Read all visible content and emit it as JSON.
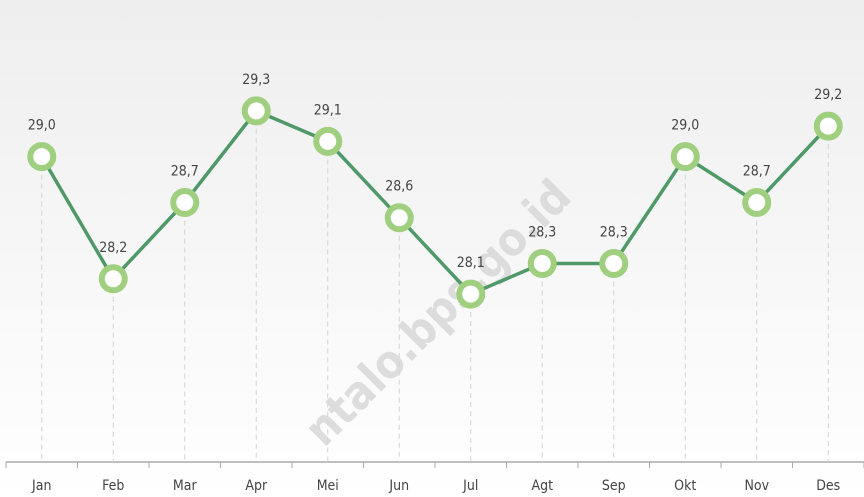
{
  "chart_data": {
    "type": "line",
    "categories": [
      "Jan",
      "Feb",
      "Mar",
      "Apr",
      "Mei",
      "Jun",
      "Jul",
      "Agt",
      "Sep",
      "Okt",
      "Nov",
      "Des"
    ],
    "values": [
      29.0,
      28.2,
      28.7,
      29.3,
      29.1,
      28.6,
      28.1,
      28.3,
      28.3,
      29.0,
      28.7,
      29.2
    ],
    "value_labels": [
      "29,0",
      "28,2",
      "28,7",
      "29,3",
      "29,1",
      "28,6",
      "28,1",
      "28,3",
      "28,3",
      "29,0",
      "28,7",
      "29,2"
    ],
    "color": "#4f9968",
    "marker_color": "#9fcf7f",
    "ylim": [
      27,
      30
    ],
    "watermark": "ntalo.bps.go.id"
  }
}
